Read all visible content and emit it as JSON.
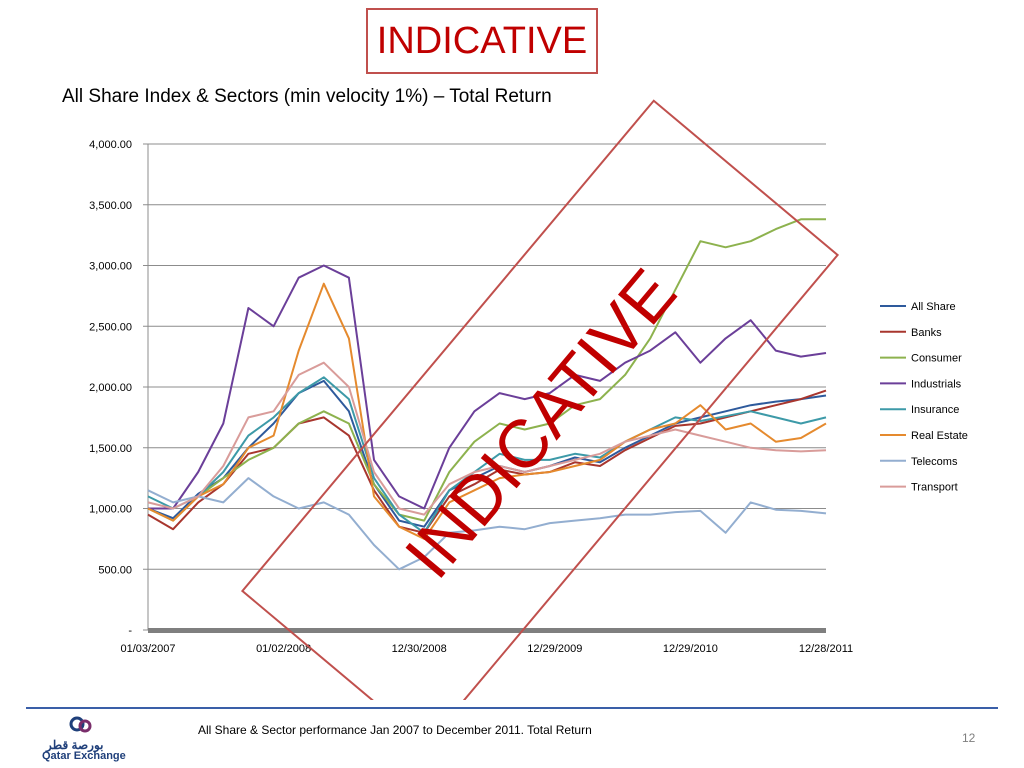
{
  "stamp_text": "INDICATIVE",
  "watermark_text": "INDICATIVE",
  "watermark_color": "#c00000",
  "slide_title": "All Share Index & Sectors (min velocity 1%) – Total Return",
  "caption": "All Share & Sector performance Jan 2007 to December 2011. Total Return",
  "page_number": "12",
  "logo": {
    "arabic": "بورصة قطر",
    "english": "Qatar Exchange"
  },
  "chart_data": {
    "type": "line",
    "title": "",
    "xlabel": "",
    "ylabel": "",
    "ylim": [
      0,
      4000
    ],
    "yticks": [
      "-",
      "500.00",
      "1,000.00",
      "1,500.00",
      "2,000.00",
      "2,500.00",
      "3,000.00",
      "3,500.00",
      "4,000.00"
    ],
    "ytick_values": [
      0,
      500,
      1000,
      1500,
      2000,
      2500,
      3000,
      3500,
      4000
    ],
    "xticks": [
      "01/03/2007",
      "01/02/2008",
      "12/30/2008",
      "12/29/2009",
      "12/29/2010",
      "12/28/2011"
    ],
    "grid": true,
    "legend_position": "right",
    "x": [
      "2007-01",
      "2007-04",
      "2007-07",
      "2007-10",
      "2008-01",
      "2008-03",
      "2008-05",
      "2008-07",
      "2008-09",
      "2008-11",
      "2009-01",
      "2009-03",
      "2009-05",
      "2009-07",
      "2009-09",
      "2009-11",
      "2010-01",
      "2010-03",
      "2010-05",
      "2010-07",
      "2010-09",
      "2010-11",
      "2011-01",
      "2011-03",
      "2011-05",
      "2011-07",
      "2011-09",
      "2011-12"
    ],
    "series": [
      {
        "name": "All Share",
        "color": "#2e5a9c",
        "values": [
          1000,
          920,
          1120,
          1250,
          1500,
          1700,
          1950,
          2050,
          1800,
          1200,
          900,
          850,
          1150,
          1250,
          1350,
          1300,
          1350,
          1420,
          1380,
          1500,
          1600,
          1700,
          1750,
          1800,
          1850,
          1880,
          1900,
          1930
        ]
      },
      {
        "name": "Banks",
        "color": "#a8362e",
        "values": [
          950,
          830,
          1050,
          1200,
          1450,
          1500,
          1700,
          1750,
          1600,
          1150,
          850,
          800,
          1100,
          1200,
          1320,
          1280,
          1300,
          1380,
          1350,
          1480,
          1580,
          1680,
          1700,
          1750,
          1800,
          1850,
          1900,
          1970
        ]
      },
      {
        "name": "Consumer",
        "color": "#8db24e",
        "values": [
          1000,
          900,
          1100,
          1250,
          1400,
          1500,
          1700,
          1800,
          1700,
          1200,
          950,
          900,
          1300,
          1550,
          1700,
          1650,
          1700,
          1850,
          1900,
          2100,
          2400,
          2800,
          3200,
          3150,
          3200,
          3300,
          3380,
          3380
        ]
      },
      {
        "name": "Industrials",
        "color": "#6b3f99",
        "values": [
          1000,
          1000,
          1300,
          1700,
          2650,
          2500,
          2900,
          3000,
          2900,
          1400,
          1100,
          1000,
          1500,
          1800,
          1950,
          1900,
          1950,
          2100,
          2050,
          2200,
          2300,
          2450,
          2200,
          2400,
          2550,
          2300,
          2250,
          2280
        ]
      },
      {
        "name": "Insurance",
        "color": "#3d9aa8",
        "values": [
          1100,
          1000,
          1100,
          1300,
          1600,
          1750,
          1950,
          2080,
          1900,
          1250,
          950,
          800,
          1150,
          1300,
          1450,
          1400,
          1400,
          1450,
          1420,
          1550,
          1650,
          1750,
          1720,
          1760,
          1800,
          1750,
          1700,
          1750
        ]
      },
      {
        "name": "Real Estate",
        "color": "#e58a2e",
        "values": [
          1000,
          900,
          1100,
          1200,
          1500,
          1600,
          2300,
          2850,
          2400,
          1100,
          850,
          750,
          1050,
          1150,
          1250,
          1280,
          1300,
          1350,
          1400,
          1550,
          1650,
          1700,
          1850,
          1650,
          1700,
          1550,
          1580,
          1700
        ]
      },
      {
        "name": "Telecoms",
        "color": "#93aed0",
        "values": [
          1150,
          1050,
          1100,
          1050,
          1250,
          1100,
          1000,
          1050,
          950,
          700,
          500,
          600,
          800,
          820,
          850,
          830,
          880,
          900,
          920,
          950,
          950,
          970,
          980,
          800,
          1050,
          990,
          980,
          960
        ]
      },
      {
        "name": "Transport",
        "color": "#d99c9a",
        "values": [
          1050,
          1000,
          1100,
          1350,
          1750,
          1800,
          2100,
          2200,
          2000,
          1300,
          1000,
          950,
          1200,
          1300,
          1350,
          1300,
          1350,
          1400,
          1450,
          1550,
          1600,
          1650,
          1600,
          1550,
          1500,
          1480,
          1470,
          1480
        ]
      }
    ]
  }
}
